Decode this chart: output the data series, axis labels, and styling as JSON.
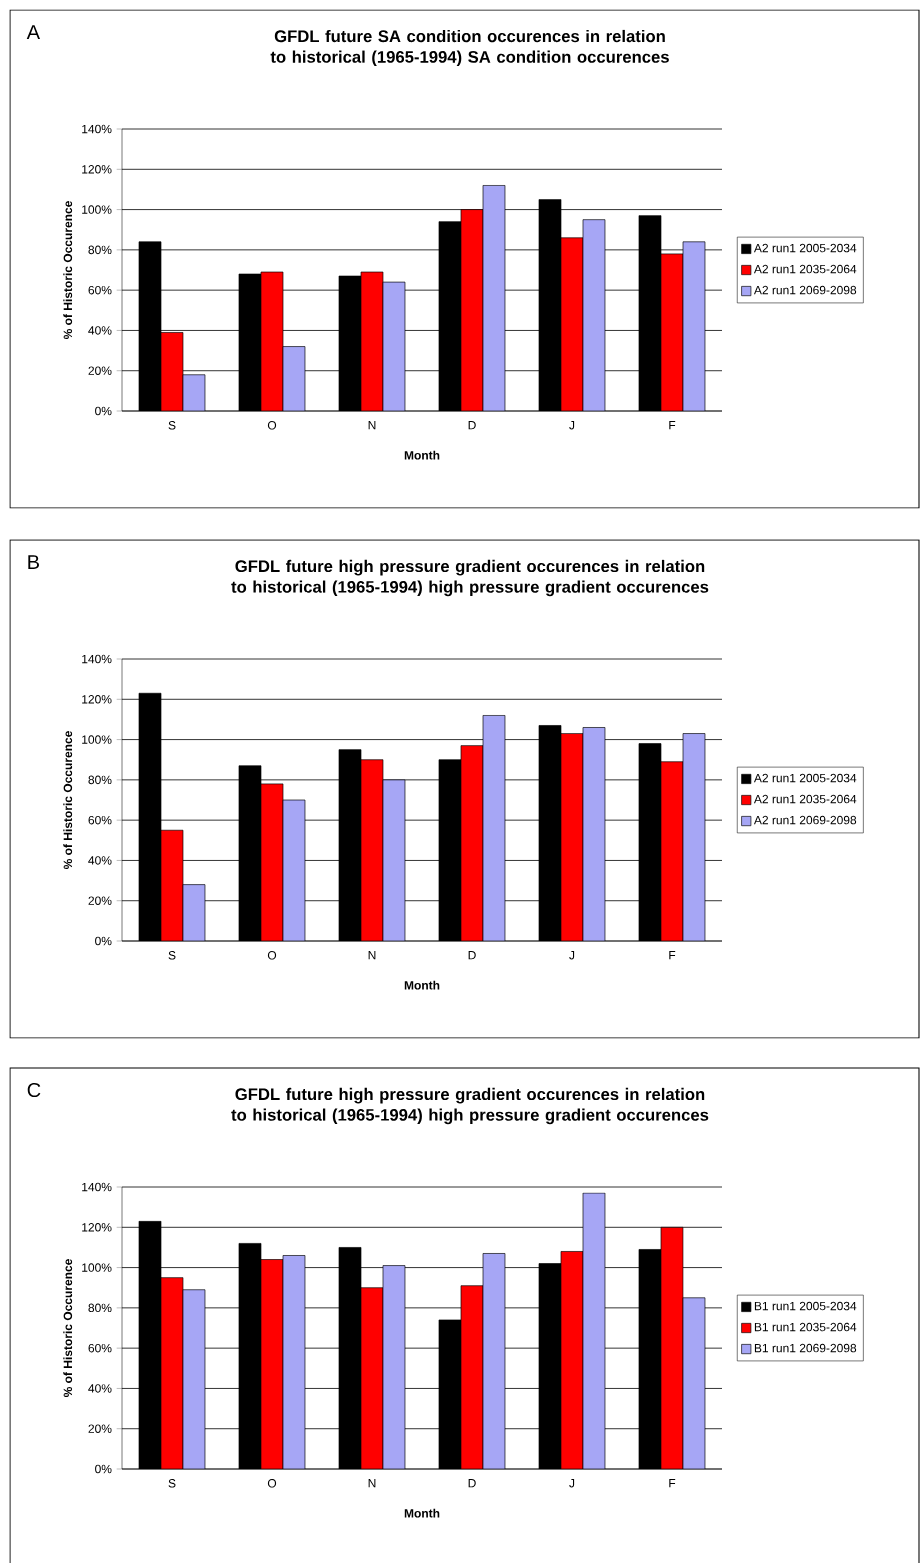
{
  "chart_data": [
    {
      "type": "bar",
      "title": "GFDL future SA condition occurences in relation to historical (1965-1994) SA condition occurences",
      "xlabel": "Month",
      "ylabel": "% of Historic Occurence",
      "annotations": [
        "A"
      ],
      "categories": [
        "S",
        "O",
        "N",
        "D",
        "J",
        "F"
      ],
      "series": [
        {
          "name": "A2 run1 2005-2034",
          "color": "#000000",
          "values": [
            84,
            68,
            67,
            94,
            105,
            97
          ]
        },
        {
          "name": "A2 run1 2035-2064",
          "color": "#ff0000",
          "values": [
            39,
            69,
            69,
            100,
            86,
            78
          ]
        },
        {
          "name": "A2 run1 2069-2098",
          "color": "#a6a6f5",
          "values": [
            18,
            32,
            64,
            112,
            95,
            84
          ]
        }
      ],
      "ylim": [
        0,
        140
      ],
      "yticks": [
        {
          "value": 0,
          "label": "0%"
        },
        {
          "value": 20,
          "label": "20%"
        },
        {
          "value": 40,
          "label": "40%"
        },
        {
          "value": 60,
          "label": "60%"
        },
        {
          "value": 80,
          "label": "80%"
        },
        {
          "value": 100,
          "label": "100%"
        },
        {
          "value": 120,
          "label": "120%"
        },
        {
          "value": 140,
          "label": "140%"
        }
      ],
      "grid": "y",
      "legend": "right"
    },
    {
      "type": "bar",
      "title": "GFDL future high pressure gradient occurences in relation to historical (1965-1994) high pressure gradient occurences",
      "xlabel": "Month",
      "ylabel": "% of Historic Occurence",
      "annotations": [
        "B"
      ],
      "categories": [
        "S",
        "O",
        "N",
        "D",
        "J",
        "F"
      ],
      "series": [
        {
          "name": "A2 run1 2005-2034",
          "color": "#000000",
          "values": [
            123,
            87,
            95,
            90,
            107,
            98
          ]
        },
        {
          "name": "A2 run1 2035-2064",
          "color": "#ff0000",
          "values": [
            55,
            78,
            90,
            97,
            103,
            89
          ]
        },
        {
          "name": "A2 run1 2069-2098",
          "color": "#a6a6f5",
          "values": [
            28,
            70,
            80,
            112,
            106,
            103
          ]
        }
      ],
      "ylim": [
        0,
        140
      ],
      "yticks": [
        {
          "value": 0,
          "label": "0%"
        },
        {
          "value": 20,
          "label": "20%"
        },
        {
          "value": 40,
          "label": "40%"
        },
        {
          "value": 60,
          "label": "60%"
        },
        {
          "value": 80,
          "label": "80%"
        },
        {
          "value": 100,
          "label": "100%"
        },
        {
          "value": 120,
          "label": "120%"
        },
        {
          "value": 140,
          "label": "140%"
        }
      ],
      "grid": "y",
      "legend": "right"
    },
    {
      "type": "bar",
      "title": "GFDL future high pressure gradient occurences in relation to historical (1965-1994) high pressure gradient occurences",
      "xlabel": "Month",
      "ylabel": "% of Historic Occurence",
      "annotations": [
        "C"
      ],
      "categories": [
        "S",
        "O",
        "N",
        "D",
        "J",
        "F"
      ],
      "series": [
        {
          "name": "B1 run1 2005-2034",
          "color": "#000000",
          "values": [
            123,
            112,
            110,
            74,
            102,
            109
          ]
        },
        {
          "name": "B1 run1 2035-2064",
          "color": "#ff0000",
          "values": [
            95,
            104,
            90,
            91,
            108,
            120
          ]
        },
        {
          "name": "B1 run1 2069-2098",
          "color": "#a6a6f5",
          "values": [
            89,
            106,
            101,
            107,
            137,
            85
          ]
        }
      ],
      "ylim": [
        0,
        140
      ],
      "yticks": [
        {
          "value": 0,
          "label": "0%"
        },
        {
          "value": 20,
          "label": "20%"
        },
        {
          "value": 40,
          "label": "40%"
        },
        {
          "value": 60,
          "label": "60%"
        },
        {
          "value": 80,
          "label": "80%"
        },
        {
          "value": 100,
          "label": "100%"
        },
        {
          "value": 120,
          "label": "120%"
        },
        {
          "value": 140,
          "label": "140%"
        }
      ],
      "grid": "y",
      "legend": "right"
    }
  ]
}
